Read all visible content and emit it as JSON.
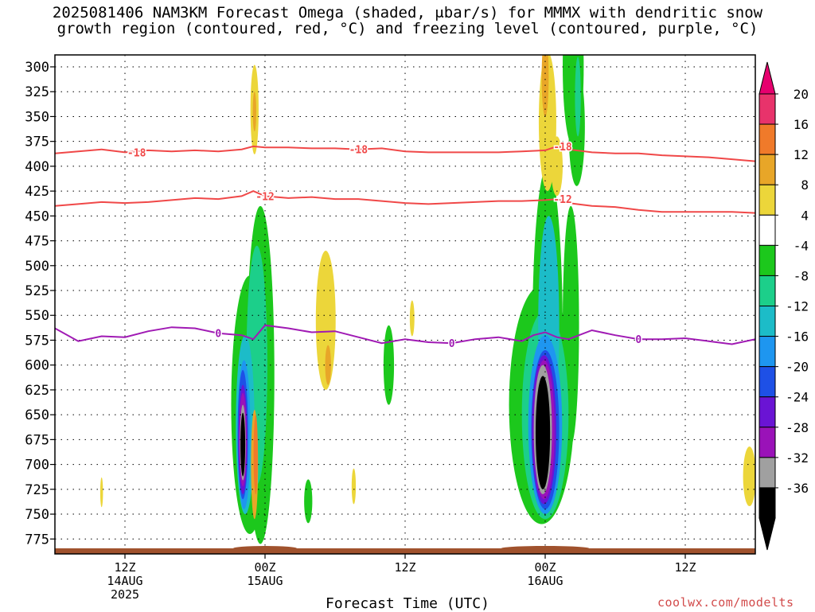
{
  "title_line1": "2025081406 NAM3KM Forecast Omega (shaded, μbar/s) for MMMX with dendritic snow",
  "title_line2": "growth region (contoured, red, °C) and freezing level (contoured, purple, °C)",
  "credit": "coolwx.com/modelts",
  "chart_data": {
    "type": "heatmap",
    "xlabel": "Forecast Time (UTC)",
    "ylabel": "",
    "x_range_hours": [
      0,
      60
    ],
    "y_range_hpa": [
      288,
      790
    ],
    "y_ticks": [
      300,
      325,
      350,
      375,
      400,
      425,
      450,
      475,
      500,
      525,
      550,
      575,
      600,
      625,
      650,
      675,
      700,
      725,
      750,
      775
    ],
    "x_ticks": [
      {
        "hour": 6,
        "label": "12Z",
        "sub1": "14AUG",
        "sub2": "2025"
      },
      {
        "hour": 18,
        "label": "00Z",
        "sub1": "15AUG",
        "sub2": ""
      },
      {
        "hour": 30,
        "label": "12Z",
        "sub1": "",
        "sub2": ""
      },
      {
        "hour": 42,
        "label": "00Z",
        "sub1": "16AUG",
        "sub2": ""
      },
      {
        "hour": 54,
        "label": "12Z",
        "sub1": "",
        "sub2": ""
      }
    ],
    "grid": true,
    "colorbar": {
      "labels": [
        "20",
        "16",
        "12",
        "8",
        "4",
        "-4",
        "-8",
        "-12",
        "-16",
        "-20",
        "-24",
        "-28",
        "-32",
        "-36"
      ],
      "colors": [
        "#e8336b",
        "#f07a2a",
        "#e8a628",
        "#ecd63a",
        "#ffffff",
        "#1cc81c",
        "#1ccf8a",
        "#1cbcc8",
        "#1e96f0",
        "#1e50e6",
        "#6a14d4",
        "#9a12b8",
        "#a0a0a0",
        "#000000"
      ],
      "top_color": "#e6006e",
      "bottom_color": "#000000"
    },
    "contours": [
      {
        "label": "-18",
        "color": "#f04848",
        "points": [
          [
            0,
            387
          ],
          [
            2,
            385
          ],
          [
            4,
            383
          ],
          [
            6,
            386
          ],
          [
            8,
            384
          ],
          [
            10,
            385
          ],
          [
            12,
            384
          ],
          [
            14,
            385
          ],
          [
            16,
            383
          ],
          [
            17,
            380
          ],
          [
            18,
            381
          ],
          [
            20,
            381
          ],
          [
            22,
            382
          ],
          [
            24,
            382
          ],
          [
            26,
            383
          ],
          [
            28,
            382
          ],
          [
            30,
            385
          ],
          [
            32,
            386
          ],
          [
            34,
            386
          ],
          [
            36,
            386
          ],
          [
            38,
            386
          ],
          [
            40,
            385
          ],
          [
            42,
            384
          ],
          [
            43,
            380
          ],
          [
            44,
            383
          ],
          [
            46,
            386
          ],
          [
            48,
            387
          ],
          [
            50,
            387
          ],
          [
            52,
            389
          ],
          [
            54,
            390
          ],
          [
            56,
            391
          ],
          [
            58,
            393
          ],
          [
            60,
            395
          ]
        ]
      },
      {
        "label": "-12",
        "color": "#f04848",
        "points": [
          [
            0,
            440
          ],
          [
            2,
            438
          ],
          [
            4,
            436
          ],
          [
            6,
            437
          ],
          [
            8,
            436
          ],
          [
            10,
            434
          ],
          [
            12,
            432
          ],
          [
            14,
            433
          ],
          [
            16,
            430
          ],
          [
            17,
            425
          ],
          [
            18,
            430
          ],
          [
            20,
            432
          ],
          [
            22,
            431
          ],
          [
            24,
            433
          ],
          [
            26,
            433
          ],
          [
            28,
            435
          ],
          [
            30,
            437
          ],
          [
            32,
            438
          ],
          [
            34,
            437
          ],
          [
            36,
            436
          ],
          [
            38,
            435
          ],
          [
            40,
            435
          ],
          [
            42,
            434
          ],
          [
            43,
            433
          ],
          [
            44,
            437
          ],
          [
            46,
            440
          ],
          [
            48,
            441
          ],
          [
            50,
            444
          ],
          [
            52,
            446
          ],
          [
            54,
            446
          ],
          [
            56,
            446
          ],
          [
            58,
            446
          ],
          [
            60,
            447
          ]
        ]
      },
      {
        "label": "0",
        "color": "#a01ab4",
        "points": [
          [
            0,
            563
          ],
          [
            2,
            576
          ],
          [
            4,
            571
          ],
          [
            6,
            572
          ],
          [
            8,
            566
          ],
          [
            10,
            562
          ],
          [
            12,
            563
          ],
          [
            14,
            568
          ],
          [
            16,
            570
          ],
          [
            17,
            574
          ],
          [
            18,
            560
          ],
          [
            20,
            563
          ],
          [
            22,
            567
          ],
          [
            24,
            566
          ],
          [
            26,
            572
          ],
          [
            28,
            578
          ],
          [
            30,
            574
          ],
          [
            32,
            577
          ],
          [
            34,
            578
          ],
          [
            36,
            574
          ],
          [
            38,
            572
          ],
          [
            40,
            576
          ],
          [
            41,
            570
          ],
          [
            42,
            567
          ],
          [
            43,
            572
          ],
          [
            44,
            574
          ],
          [
            46,
            565
          ],
          [
            48,
            570
          ],
          [
            50,
            574
          ],
          [
            52,
            574
          ],
          [
            54,
            573
          ],
          [
            56,
            576
          ],
          [
            58,
            579
          ],
          [
            60,
            574
          ]
        ]
      }
    ]
  }
}
